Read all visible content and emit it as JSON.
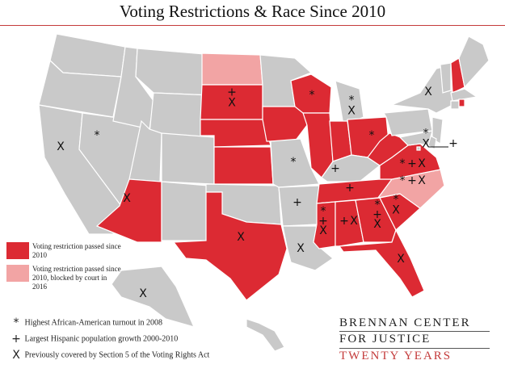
{
  "title": "Voting Restrictions & Race Since 2010",
  "colors": {
    "restriction": "#dc2a33",
    "blocked": "#f2a4a4",
    "none": "#c9c9c9",
    "border": "#ffffff",
    "brand_accent": "#c43b3b"
  },
  "legend": {
    "restriction_label": "Voting restriction passed since 2010",
    "blocked_label": "Voting restriction passed since 2010, blocked by court in 2016"
  },
  "symbol_key": [
    {
      "symbol": "*",
      "name": "asterisk-icon",
      "label": "Highest African-American  turnout in 2008"
    },
    {
      "symbol": "+",
      "name": "plus-icon",
      "label": "Largest Hispanic population growth 2000-2010"
    },
    {
      "symbol": "X",
      "name": "x-icon",
      "label": "Previously covered by Section 5 of the Voting Rights Act"
    }
  ],
  "brand": {
    "line1": "BRENNAN CENTER",
    "line2": "FOR JUSTICE",
    "line3": "TWENTY YEARS"
  },
  "states": [
    {
      "code": "WA",
      "status": "none",
      "symbols": ""
    },
    {
      "code": "OR",
      "status": "none",
      "symbols": ""
    },
    {
      "code": "CA",
      "status": "none",
      "symbols": "X"
    },
    {
      "code": "NV",
      "status": "none",
      "symbols": "*"
    },
    {
      "code": "ID",
      "status": "none",
      "symbols": ""
    },
    {
      "code": "MT",
      "status": "none",
      "symbols": ""
    },
    {
      "code": "WY",
      "status": "none",
      "symbols": ""
    },
    {
      "code": "UT",
      "status": "none",
      "symbols": ""
    },
    {
      "code": "AZ",
      "status": "restriction",
      "symbols": "X"
    },
    {
      "code": "CO",
      "status": "none",
      "symbols": ""
    },
    {
      "code": "NM",
      "status": "none",
      "symbols": ""
    },
    {
      "code": "ND",
      "status": "blocked",
      "symbols": ""
    },
    {
      "code": "SD",
      "status": "restriction",
      "symbols": "+X"
    },
    {
      "code": "NE",
      "status": "restriction",
      "symbols": ""
    },
    {
      "code": "KS",
      "status": "restriction",
      "symbols": ""
    },
    {
      "code": "OK",
      "status": "none",
      "symbols": ""
    },
    {
      "code": "TX",
      "status": "restriction",
      "symbols": "X"
    },
    {
      "code": "MN",
      "status": "none",
      "symbols": ""
    },
    {
      "code": "IA",
      "status": "restriction",
      "symbols": ""
    },
    {
      "code": "MO",
      "status": "none",
      "symbols": "*"
    },
    {
      "code": "AR",
      "status": "none",
      "symbols": "+"
    },
    {
      "code": "LA",
      "status": "none",
      "symbols": "X"
    },
    {
      "code": "WI",
      "status": "restriction",
      "symbols": "*"
    },
    {
      "code": "IL",
      "status": "restriction",
      "symbols": ""
    },
    {
      "code": "MI",
      "status": "none",
      "symbols": "*X"
    },
    {
      "code": "IN",
      "status": "restriction",
      "symbols": ""
    },
    {
      "code": "OH",
      "status": "restriction",
      "symbols": "*"
    },
    {
      "code": "KY",
      "status": "none",
      "symbols": "+"
    },
    {
      "code": "TN",
      "status": "restriction",
      "symbols": "+"
    },
    {
      "code": "MS",
      "status": "restriction",
      "symbols": "*+X"
    },
    {
      "code": "AL",
      "status": "restriction",
      "symbols": "+X"
    },
    {
      "code": "GA",
      "status": "restriction",
      "symbols": "*+X"
    },
    {
      "code": "FL",
      "status": "restriction",
      "symbols": "X"
    },
    {
      "code": "SC",
      "status": "restriction",
      "symbols": "*X"
    },
    {
      "code": "NC",
      "status": "blocked",
      "symbols": "*+X"
    },
    {
      "code": "VA",
      "status": "restriction",
      "symbols": "*+X"
    },
    {
      "code": "WV",
      "status": "restriction",
      "symbols": ""
    },
    {
      "code": "PA",
      "status": "none",
      "symbols": ""
    },
    {
      "code": "NY",
      "status": "none",
      "symbols": "X"
    },
    {
      "code": "NJ",
      "status": "none",
      "symbols": ""
    },
    {
      "code": "DE",
      "status": "none",
      "symbols": ""
    },
    {
      "code": "MD",
      "status": "none",
      "symbols": "*X"
    },
    {
      "code": "DC",
      "status": "none",
      "symbols": "+"
    },
    {
      "code": "VT",
      "status": "none",
      "symbols": ""
    },
    {
      "code": "NH",
      "status": "restriction",
      "symbols": ""
    },
    {
      "code": "ME",
      "status": "none",
      "symbols": ""
    },
    {
      "code": "MA",
      "status": "none",
      "symbols": ""
    },
    {
      "code": "CT",
      "status": "none",
      "symbols": ""
    },
    {
      "code": "RI",
      "status": "restriction",
      "symbols": ""
    },
    {
      "code": "AK",
      "status": "none",
      "symbols": "X"
    },
    {
      "code": "HI",
      "status": "none",
      "symbols": ""
    }
  ]
}
